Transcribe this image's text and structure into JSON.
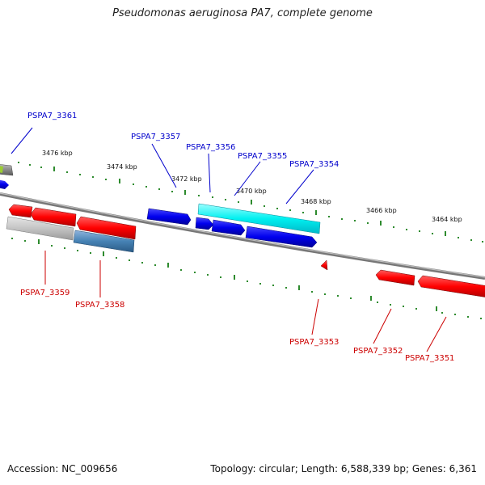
{
  "title": "Pseudomonas aeruginosa PA7, complete genome",
  "accession_label": "Accession: NC_009656",
  "summary_label": "Topology: circular; Length: 6,588,339 bp; Genes: 6,361",
  "colors": {
    "forward_label": "#0000cc",
    "reverse_label": "#cc0000",
    "backbone": "#808080",
    "tick": "#2e8b2e"
  },
  "scale_labels": [
    "3476 kbp",
    "3474 kbp",
    "3472 kbp",
    "3470 kbp",
    "3468 kbp",
    "3466 kbp",
    "3464 kbp"
  ],
  "gene_labels": {
    "forward": [
      "PSPA7_3361",
      "PSPA7_3357",
      "PSPA7_3356",
      "PSPA7_3355",
      "PSPA7_3354"
    ],
    "reverse": [
      "PSPA7_3359",
      "PSPA7_3358",
      "PSPA7_3353",
      "PSPA7_3352",
      "PSPA7_3351"
    ]
  }
}
